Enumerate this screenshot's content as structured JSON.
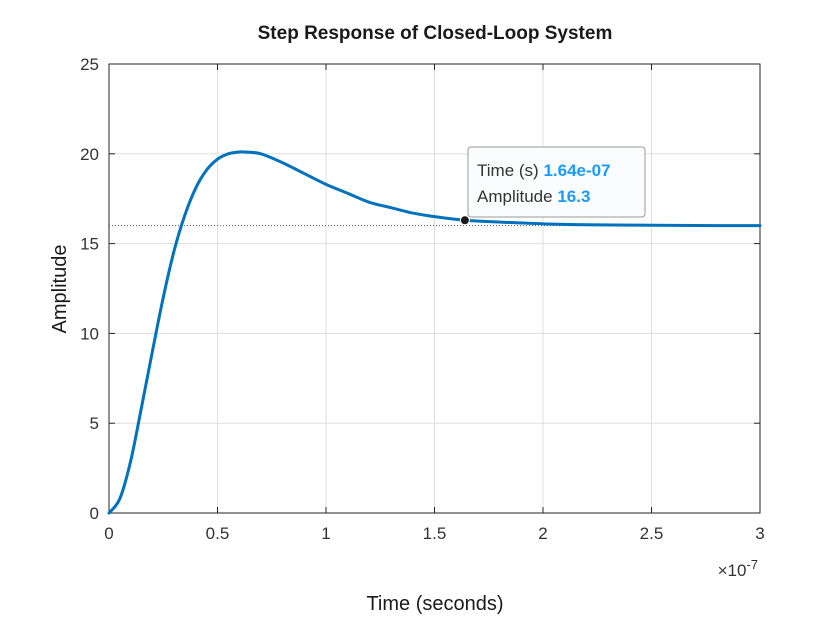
{
  "chart_data": {
    "type": "line",
    "title": "Step Response of Closed-Loop System",
    "xlabel": "Time (seconds)",
    "ylabel": "Amplitude",
    "x_exponent_label": "×10",
    "x_exponent_power": "-7",
    "xlim": [
      0,
      3e-07
    ],
    "ylim": [
      0,
      25
    ],
    "x_ticks": [
      0,
      5e-08,
      1e-07,
      1.5e-07,
      2e-07,
      2.5e-07,
      3e-07
    ],
    "x_tick_labels": [
      "0",
      "0.5",
      "1",
      "1.5",
      "2",
      "2.5",
      "3"
    ],
    "y_ticks": [
      0,
      5,
      10,
      15,
      20,
      25
    ],
    "y_tick_labels": [
      "0",
      "5",
      "10",
      "15",
      "20",
      "25"
    ],
    "grid": true,
    "steady_state_value": 16,
    "series": [
      {
        "color": "#0072BD",
        "x": [
          0,
          5e-09,
          1e-08,
          1.5e-08,
          2e-08,
          2.5e-08,
          3e-08,
          3.5e-08,
          4e-08,
          4.5e-08,
          5e-08,
          5.5e-08,
          6e-08,
          6.25e-08,
          7e-08,
          8e-08,
          9e-08,
          1e-07,
          1.1e-07,
          1.2e-07,
          1.3e-07,
          1.4e-07,
          1.5e-07,
          1.64e-07,
          1.8e-07,
          2e-07,
          2.2e-07,
          2.5e-07,
          2.8e-07,
          3e-07
        ],
        "y": [
          0,
          0.8,
          2.9,
          5.9,
          9.0,
          12.0,
          14.6,
          16.6,
          18.1,
          19.1,
          19.7,
          20.0,
          20.1,
          20.1,
          20.0,
          19.5,
          18.9,
          18.3,
          17.8,
          17.3,
          17.0,
          16.7,
          16.5,
          16.3,
          16.2,
          16.1,
          16.05,
          16.02,
          16.0,
          16.0
        ]
      }
    ],
    "datatip": {
      "x": 1.64e-07,
      "y": 16.3,
      "time_label": "Time (s)",
      "time_value": "1.64e-07",
      "amplitude_label": "Amplitude",
      "amplitude_value": "16.3"
    },
    "colors": {
      "line": "#0072BD",
      "grid": "#dfdfdf",
      "axes": "#262626",
      "tip_value": "#1a9bff"
    }
  }
}
